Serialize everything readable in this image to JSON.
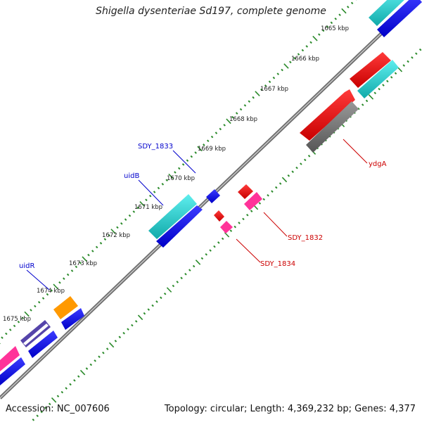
{
  "title": "Shigella dysenteriae Sd197, complete genome",
  "footer": {
    "accession": "Accession: NC_007606",
    "summary": "Topology: circular; Length: 4,369,232 bp; Genes: 4,377"
  },
  "kbp_ticks": [
    "1665 kbp",
    "1666 kbp",
    "1667 kbp",
    "1668 kbp",
    "1669 kbp",
    "1670 kbp",
    "1671 kbp",
    "1672 kbp",
    "1673 kbp",
    "1674 kbp",
    "1675 kbp"
  ],
  "gene_labels": [
    {
      "text": "SDY_1833",
      "color": "#0000cc"
    },
    {
      "text": "uidB",
      "color": "#0000cc"
    },
    {
      "text": "uidR",
      "color": "#0000cc"
    },
    {
      "text": "ydgA",
      "color": "#cc0000"
    },
    {
      "text": "SDY_1832",
      "color": "#cc0000"
    },
    {
      "text": "SDY_1834",
      "color": "#cc0000"
    }
  ],
  "colors": {
    "backbone": "#8a8a8a",
    "tick_dots": "#2a8a2a",
    "forward_cds": "#0000ee",
    "reverse_cds": "#ee0000",
    "rna": "#22cccc",
    "pink": "#ff3399",
    "orange": "#ff9900",
    "purple": "#5544aa",
    "gray": "#777777"
  }
}
